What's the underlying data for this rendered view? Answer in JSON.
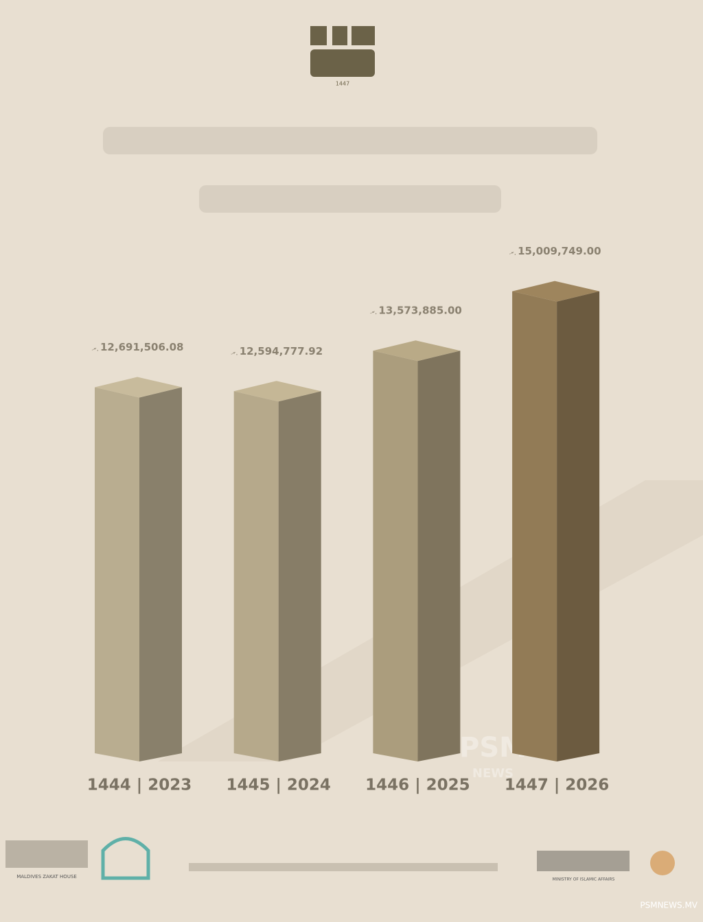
{
  "chart_data": {
    "type": "bar3d",
    "year_badge": "1447",
    "currency": "ރ.",
    "categories": [
      "1444 | 2023",
      "1445 | 2024",
      "1446 | 2025",
      "1447 | 2026"
    ],
    "values": [
      12691506.08,
      12594777.92,
      13573885.0,
      15009749.0
    ],
    "value_labels": [
      "12,691,506.08",
      "12,594,777.92",
      "13,573,885.00",
      "15,009,749.00"
    ],
    "colors": [
      "#b9ad90",
      "#b6a98b",
      "#ab9d7d",
      "#927b56"
    ],
    "ylim": [
      3650000,
      15500000
    ],
    "watermark": [
      "PSM",
      "NEWS"
    ],
    "footer": {
      "left_org": "MALDIVES ZAKAT HOUSE",
      "right_org": "MINISTRY OF ISLAMIC AFFAIRS",
      "source": "PSMNEWS.MV"
    }
  }
}
